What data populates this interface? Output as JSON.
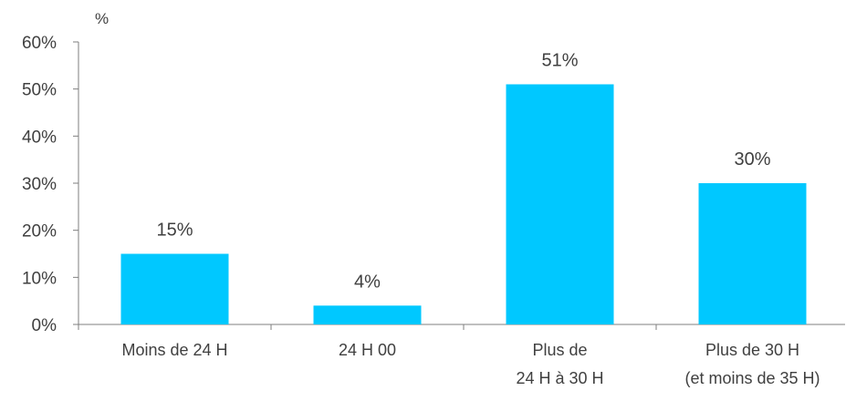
{
  "chart_data": {
    "type": "bar",
    "unit": "%",
    "categories": [
      [
        "Moins de 24 H"
      ],
      [
        "24 H 00"
      ],
      [
        "Plus de",
        "24 H à 30 H"
      ],
      [
        "Plus de 30 H",
        "(et moins de 35 H)"
      ]
    ],
    "values": [
      15,
      4,
      51,
      30
    ],
    "data_labels": [
      "15%",
      "4%",
      "51%",
      "30%"
    ],
    "yticks": [
      0,
      10,
      20,
      30,
      40,
      50,
      60
    ],
    "ytick_labels": [
      "0%",
      "10%",
      "20%",
      "30%",
      "40%",
      "50%",
      "60%"
    ],
    "ylim": [
      0,
      60
    ],
    "grid": false,
    "legend": "none",
    "bar_color": "#00c8ff",
    "axis_color": "#7f7f7f",
    "text_color": "#404040"
  }
}
